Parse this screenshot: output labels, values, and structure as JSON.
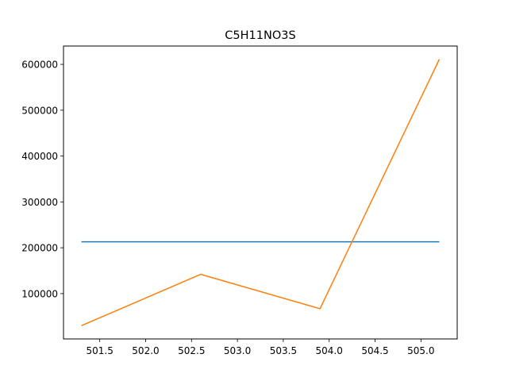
{
  "chart_data": {
    "type": "line",
    "title": "C5H11NO3S",
    "xlabel": "",
    "ylabel": "",
    "xlim": [
      501.105,
      505.395
    ],
    "ylim": [
      1100,
      640000
    ],
    "x_ticks": [
      501.5,
      502.0,
      502.5,
      503.0,
      503.5,
      504.0,
      504.5,
      505.0
    ],
    "x_tick_labels": [
      "501.5",
      "502.0",
      "502.5",
      "503.0",
      "503.5",
      "504.0",
      "504.5",
      "505.0"
    ],
    "y_ticks": [
      100000,
      200000,
      300000,
      400000,
      500000,
      600000
    ],
    "y_tick_labels": [
      "100000",
      "200000",
      "300000",
      "400000",
      "500000",
      "600000"
    ],
    "grid": false,
    "legend": "none",
    "series": [
      {
        "color": "#1f77b4",
        "x": [
          501.3,
          505.2
        ],
        "y": [
          213000,
          213000
        ]
      },
      {
        "color": "#ff7f0e",
        "x": [
          501.3,
          502.6,
          503.9,
          505.2
        ],
        "y": [
          30000,
          142000,
          67000,
          611000
        ]
      }
    ]
  }
}
